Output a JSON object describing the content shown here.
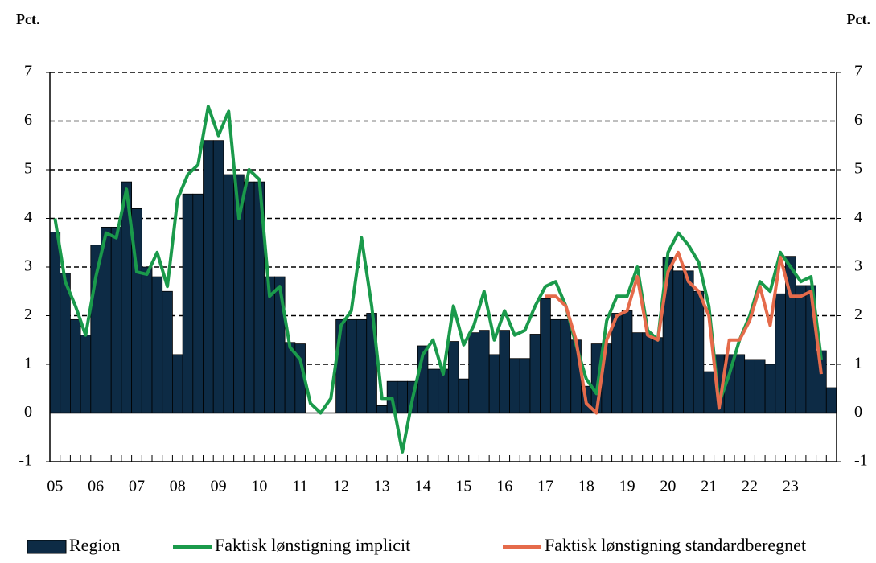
{
  "chart_data": {
    "type": "bar-line",
    "y_label": "Pct.",
    "y2_label": "Pct.",
    "categories": [
      "05",
      null,
      null,
      null,
      "06",
      null,
      null,
      null,
      "07",
      null,
      null,
      null,
      "08",
      null,
      null,
      null,
      "09",
      null,
      null,
      null,
      "10",
      null,
      null,
      null,
      "11",
      null,
      null,
      null,
      "12",
      null,
      null,
      null,
      "13",
      null,
      null,
      null,
      "14",
      null,
      null,
      null,
      "15",
      null,
      null,
      null,
      "16",
      null,
      null,
      null,
      "17",
      null,
      null,
      null,
      "18",
      null,
      null,
      null,
      "19",
      null,
      null,
      null,
      "20",
      null,
      null,
      null,
      "21",
      null,
      null,
      null,
      "22",
      null,
      null,
      null,
      "23",
      null,
      null,
      null,
      null
    ],
    "series": [
      {
        "name": "Region",
        "kind": "bar",
        "color": "#0d2b45",
        "values": [
          3.72,
          2.87,
          1.92,
          1.6,
          3.45,
          3.82,
          3.82,
          4.75,
          4.2,
          3.0,
          2.8,
          2.5,
          1.2,
          4.5,
          4.5,
          5.6,
          5.6,
          4.9,
          4.9,
          4.75,
          4.75,
          2.8,
          2.8,
          1.45,
          1.42,
          null,
          null,
          null,
          1.92,
          1.92,
          1.92,
          2.05,
          0.15,
          0.65,
          0.65,
          0.65,
          1.38,
          0.9,
          0.9,
          1.47,
          0.7,
          1.65,
          1.7,
          1.2,
          1.7,
          1.12,
          1.12,
          1.62,
          2.35,
          1.92,
          1.92,
          1.5,
          0.55,
          1.42,
          1.42,
          2.05,
          2.1,
          1.65,
          1.65,
          1.55,
          3.2,
          2.92,
          2.92,
          2.5,
          0.85,
          1.2,
          1.2,
          1.2,
          1.1,
          1.1,
          1.0,
          2.45,
          3.22,
          2.62,
          2.62,
          1.28,
          0.52
        ]
      },
      {
        "name": "Faktisk lønstigning implicit",
        "kind": "line",
        "color": "#1a9a4b",
        "values": [
          4.0,
          2.7,
          2.2,
          1.6,
          2.8,
          3.7,
          3.6,
          4.6,
          2.9,
          2.85,
          3.3,
          2.6,
          4.4,
          4.9,
          5.1,
          6.3,
          5.7,
          6.2,
          4.0,
          5.0,
          4.8,
          2.4,
          2.6,
          1.35,
          1.1,
          0.2,
          0.0,
          0.3,
          1.8,
          2.1,
          3.6,
          2.2,
          0.3,
          0.3,
          -0.8,
          0.3,
          1.2,
          1.5,
          0.8,
          2.2,
          1.4,
          1.8,
          2.5,
          1.5,
          2.1,
          1.6,
          1.7,
          2.2,
          2.6,
          2.7,
          2.2,
          1.4,
          0.7,
          0.4,
          1.9,
          2.4,
          2.4,
          3.0,
          1.7,
          1.5,
          3.3,
          3.7,
          3.45,
          3.1,
          2.2,
          0.2,
          0.8,
          1.5,
          2.0,
          2.7,
          2.5,
          3.3,
          3.0,
          2.7,
          2.8,
          1.1,
          null
        ]
      },
      {
        "name": "Faktisk lønstigning standardberegnet",
        "kind": "line",
        "color": "#e56b4b",
        "values": [
          null,
          null,
          null,
          null,
          null,
          null,
          null,
          null,
          null,
          null,
          null,
          null,
          null,
          null,
          null,
          null,
          null,
          null,
          null,
          null,
          null,
          null,
          null,
          null,
          null,
          null,
          null,
          null,
          null,
          null,
          null,
          null,
          null,
          null,
          null,
          null,
          null,
          null,
          null,
          null,
          null,
          null,
          null,
          null,
          null,
          null,
          null,
          null,
          2.4,
          2.4,
          2.2,
          1.5,
          0.2,
          0.0,
          1.5,
          2.0,
          2.1,
          2.8,
          1.6,
          1.5,
          2.9,
          3.3,
          2.7,
          2.5,
          2.0,
          0.1,
          1.5,
          1.5,
          1.9,
          2.6,
          1.8,
          3.2,
          2.4,
          2.4,
          2.5,
          0.8,
          null
        ]
      }
    ],
    "ylim": [
      -1,
      7
    ],
    "yticks": [
      -1,
      0,
      1,
      2,
      3,
      4,
      5,
      6,
      7
    ],
    "grid": true
  }
}
